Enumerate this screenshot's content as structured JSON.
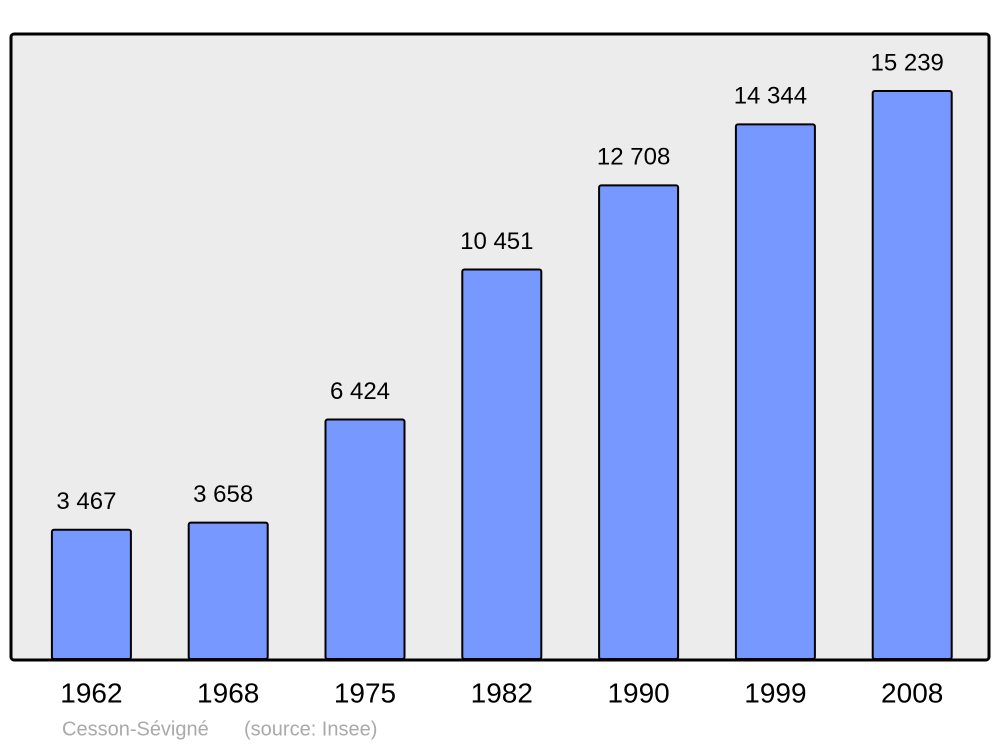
{
  "chart_data": {
    "type": "bar",
    "categories": [
      "1962",
      "1968",
      "1975",
      "1982",
      "1990",
      "1999",
      "2008"
    ],
    "values": [
      3467,
      3658,
      6424,
      10451,
      12708,
      14344,
      15239
    ],
    "value_labels": [
      "3 467",
      "3 658",
      "6 424",
      "10 451",
      "12 708",
      "14 344",
      "15 239"
    ],
    "color": "#7799ff",
    "footer": {
      "place": "Cesson-Sévigné",
      "source": "(source: Insee)"
    }
  }
}
